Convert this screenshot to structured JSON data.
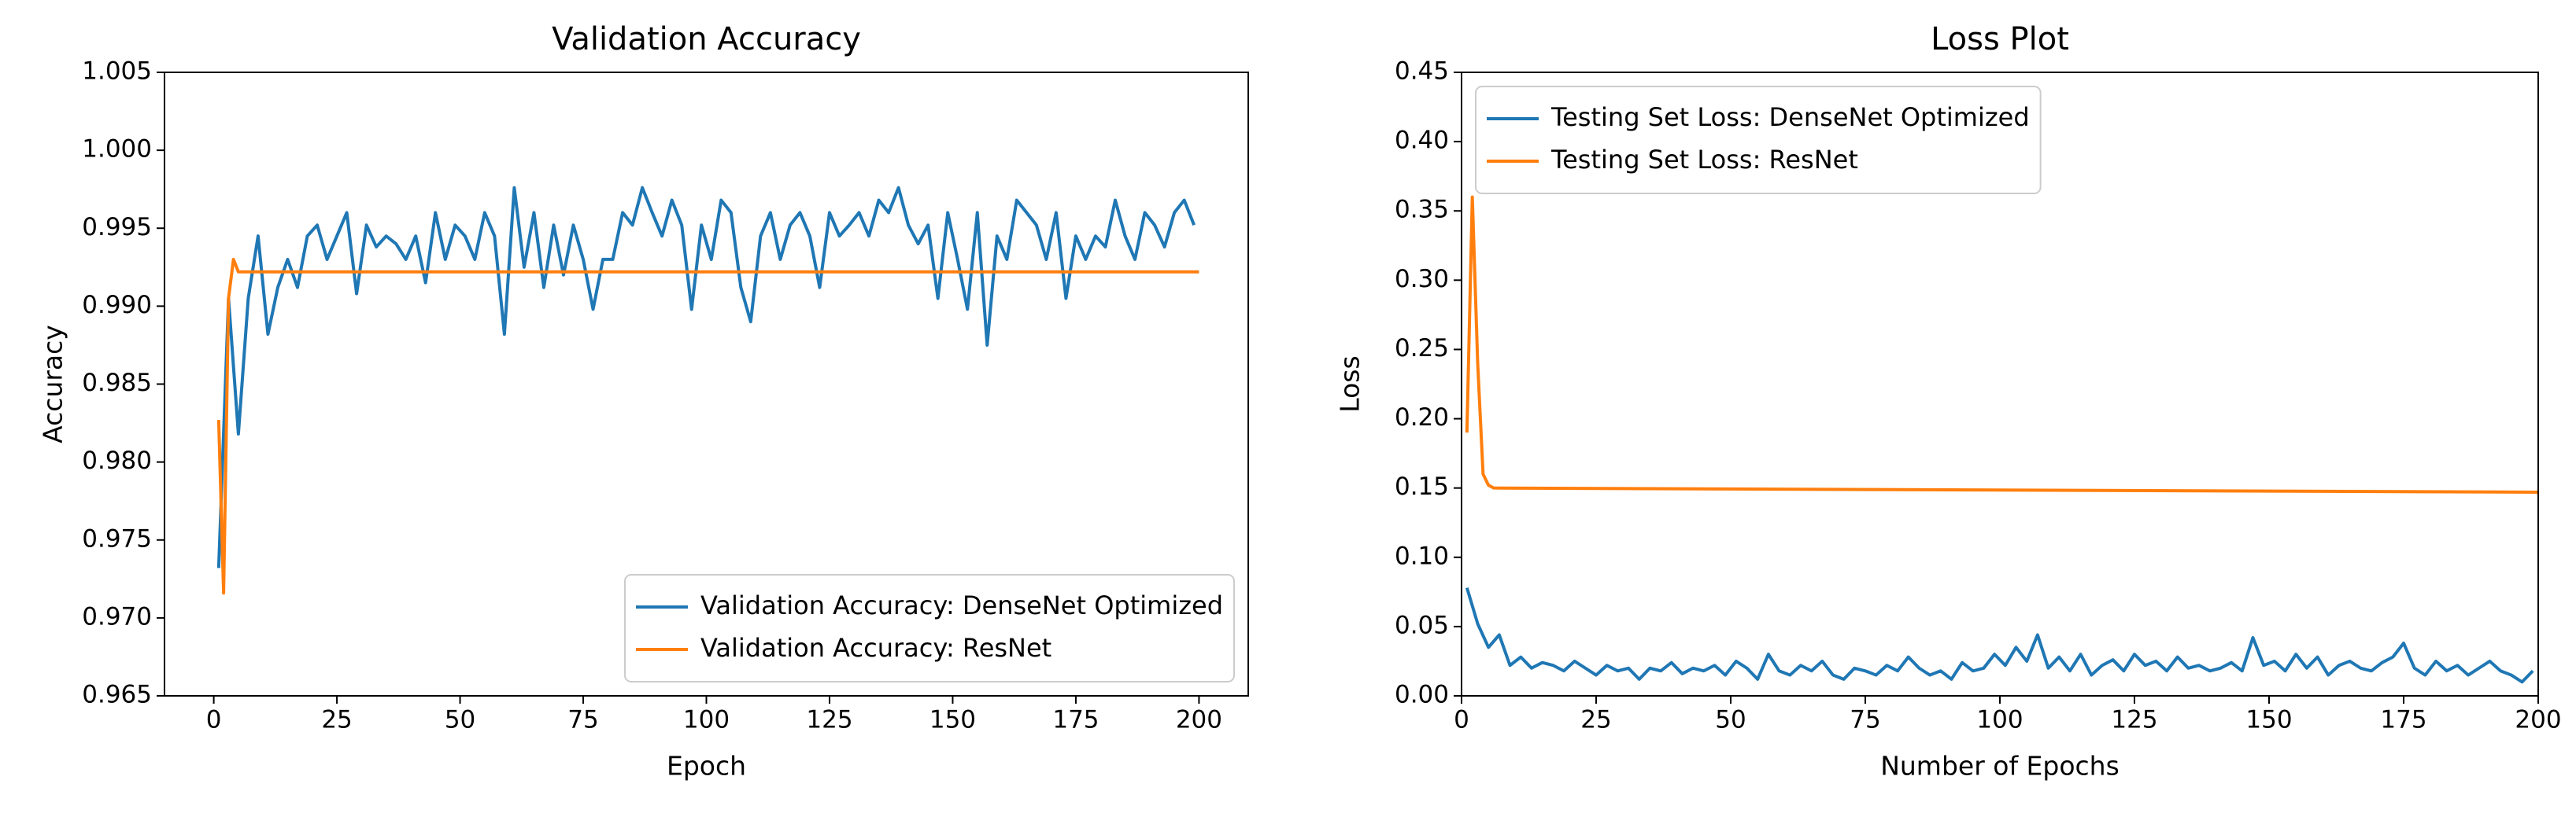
{
  "chart_data": [
    {
      "type": "line",
      "title": "Validation Accuracy",
      "xlabel": "Epoch",
      "ylabel": "Accuracy",
      "xlim": [
        -10,
        210
      ],
      "xticks": [
        0,
        25,
        50,
        75,
        100,
        125,
        150,
        175,
        200
      ],
      "ylim": [
        0.965,
        1.005
      ],
      "yticks": [
        0.965,
        {
          "value": 0.97,
          "label": "0.970"
        },
        0.975,
        {
          "value": 0.98,
          "label": "0.980"
        },
        0.985,
        {
          "value": 0.99,
          "label": "0.990"
        },
        0.995,
        {
          "value": 1.0,
          "label": "1.000"
        },
        1.005
      ],
      "legend": "lower right",
      "series": [
        {
          "name": "Validation Accuracy: DenseNet Optimized",
          "color": "#1f77b4",
          "x": [
            1,
            3,
            5,
            7,
            9,
            11,
            13,
            15,
            17,
            19,
            21,
            23,
            25,
            27,
            29,
            31,
            33,
            35,
            37,
            39,
            41,
            43,
            45,
            47,
            49,
            51,
            53,
            55,
            57,
            59,
            61,
            63,
            65,
            67,
            69,
            71,
            73,
            75,
            77,
            79,
            81,
            83,
            85,
            87,
            89,
            91,
            93,
            95,
            97,
            99,
            101,
            103,
            105,
            107,
            109,
            111,
            113,
            115,
            117,
            119,
            121,
            123,
            125,
            127,
            129,
            131,
            133,
            135,
            137,
            139,
            141,
            143,
            145,
            147,
            149,
            151,
            153,
            155,
            157,
            159,
            161,
            163,
            165,
            167,
            169,
            171,
            173,
            175,
            177,
            179,
            181,
            183,
            185,
            187,
            189,
            191,
            193,
            195,
            197,
            199
          ],
          "values": [
            0.9732,
            0.9905,
            0.9818,
            0.9905,
            0.9945,
            0.9882,
            0.9912,
            0.993,
            0.9912,
            0.9945,
            0.9952,
            0.993,
            0.9945,
            0.996,
            0.9908,
            0.9952,
            0.9938,
            0.9945,
            0.994,
            0.993,
            0.9945,
            0.9915,
            0.996,
            0.993,
            0.9952,
            0.9945,
            0.993,
            0.996,
            0.9945,
            0.9882,
            0.9976,
            0.9925,
            0.996,
            0.9912,
            0.9952,
            0.992,
            0.9952,
            0.993,
            0.9898,
            0.993,
            0.993,
            0.996,
            0.9952,
            0.9976,
            0.996,
            0.9945,
            0.9968,
            0.9952,
            0.9898,
            0.9952,
            0.993,
            0.9968,
            0.996,
            0.9912,
            0.989,
            0.9945,
            0.996,
            0.993,
            0.9952,
            0.996,
            0.9945,
            0.9912,
            0.996,
            0.9945,
            0.9952,
            0.996,
            0.9945,
            0.9968,
            0.996,
            0.9976,
            0.9952,
            0.994,
            0.9952,
            0.9905,
            0.996,
            0.993,
            0.9898,
            0.996,
            0.9875,
            0.9945,
            0.993,
            0.9968,
            0.996,
            0.9952,
            0.993,
            0.996,
            0.9905,
            0.9945,
            0.993,
            0.9945,
            0.9938,
            0.9968,
            0.9945,
            0.993,
            0.996,
            0.9952,
            0.9938,
            0.996,
            0.9968,
            0.9952
          ]
        },
        {
          "name": "Validation Accuracy: ResNet",
          "color": "#ff7f0e",
          "x": [
            1,
            2,
            3,
            4,
            5,
            200
          ],
          "values": [
            0.9827,
            0.9716,
            0.9905,
            0.993,
            0.9922,
            0.9922
          ]
        }
      ]
    },
    {
      "type": "line",
      "title": "Loss Plot",
      "xlabel": "Number of Epochs",
      "ylabel": "Loss",
      "xlim": [
        0,
        200
      ],
      "xticks": [
        0,
        25,
        50,
        75,
        100,
        125,
        150,
        175,
        200
      ],
      "ylim": [
        0,
        0.45
      ],
      "yticks": [
        {
          "value": 0,
          "label": "0.00"
        },
        0.05,
        {
          "value": 0.1,
          "label": "0.10"
        },
        0.15,
        {
          "value": 0.2,
          "label": "0.20"
        },
        0.25,
        {
          "value": 0.3,
          "label": "0.30"
        },
        0.35,
        {
          "value": 0.4,
          "label": "0.40"
        },
        0.45
      ],
      "legend": "upper left",
      "series": [
        {
          "name": "Testing Set Loss: DenseNet Optimized",
          "color": "#1f77b4",
          "x": [
            1,
            3,
            5,
            7,
            9,
            11,
            13,
            15,
            17,
            19,
            21,
            23,
            25,
            27,
            29,
            31,
            33,
            35,
            37,
            39,
            41,
            43,
            45,
            47,
            49,
            51,
            53,
            55,
            57,
            59,
            61,
            63,
            65,
            67,
            69,
            71,
            73,
            75,
            77,
            79,
            81,
            83,
            85,
            87,
            89,
            91,
            93,
            95,
            97,
            99,
            101,
            103,
            105,
            107,
            109,
            111,
            113,
            115,
            117,
            119,
            121,
            123,
            125,
            127,
            129,
            131,
            133,
            135,
            137,
            139,
            141,
            143,
            145,
            147,
            149,
            151,
            153,
            155,
            157,
            159,
            161,
            163,
            165,
            167,
            169,
            171,
            173,
            175,
            177,
            179,
            181,
            183,
            185,
            187,
            189,
            191,
            193,
            195,
            197,
            199
          ],
          "values": [
            0.078,
            0.052,
            0.035,
            0.044,
            0.022,
            0.028,
            0.02,
            0.024,
            0.022,
            0.018,
            0.025,
            0.02,
            0.015,
            0.022,
            0.018,
            0.02,
            0.012,
            0.02,
            0.018,
            0.024,
            0.016,
            0.02,
            0.018,
            0.022,
            0.015,
            0.025,
            0.02,
            0.012,
            0.03,
            0.018,
            0.015,
            0.022,
            0.018,
            0.025,
            0.015,
            0.012,
            0.02,
            0.018,
            0.015,
            0.022,
            0.018,
            0.028,
            0.02,
            0.015,
            0.018,
            0.012,
            0.024,
            0.018,
            0.02,
            0.03,
            0.022,
            0.035,
            0.025,
            0.044,
            0.02,
            0.028,
            0.018,
            0.03,
            0.015,
            0.022,
            0.026,
            0.018,
            0.03,
            0.022,
            0.025,
            0.018,
            0.028,
            0.02,
            0.022,
            0.018,
            0.02,
            0.024,
            0.018,
            0.042,
            0.022,
            0.025,
            0.018,
            0.03,
            0.02,
            0.028,
            0.015,
            0.022,
            0.025,
            0.02,
            0.018,
            0.024,
            0.028,
            0.038,
            0.02,
            0.015,
            0.025,
            0.018,
            0.022,
            0.015,
            0.02,
            0.025,
            0.018,
            0.015,
            0.01,
            0.018
          ]
        },
        {
          "name": "Testing Set Loss: ResNet",
          "color": "#ff7f0e",
          "x": [
            1,
            2,
            3,
            4,
            5,
            6,
            200
          ],
          "values": [
            0.19,
            0.36,
            0.24,
            0.16,
            0.152,
            0.15,
            0.147
          ]
        }
      ]
    }
  ]
}
